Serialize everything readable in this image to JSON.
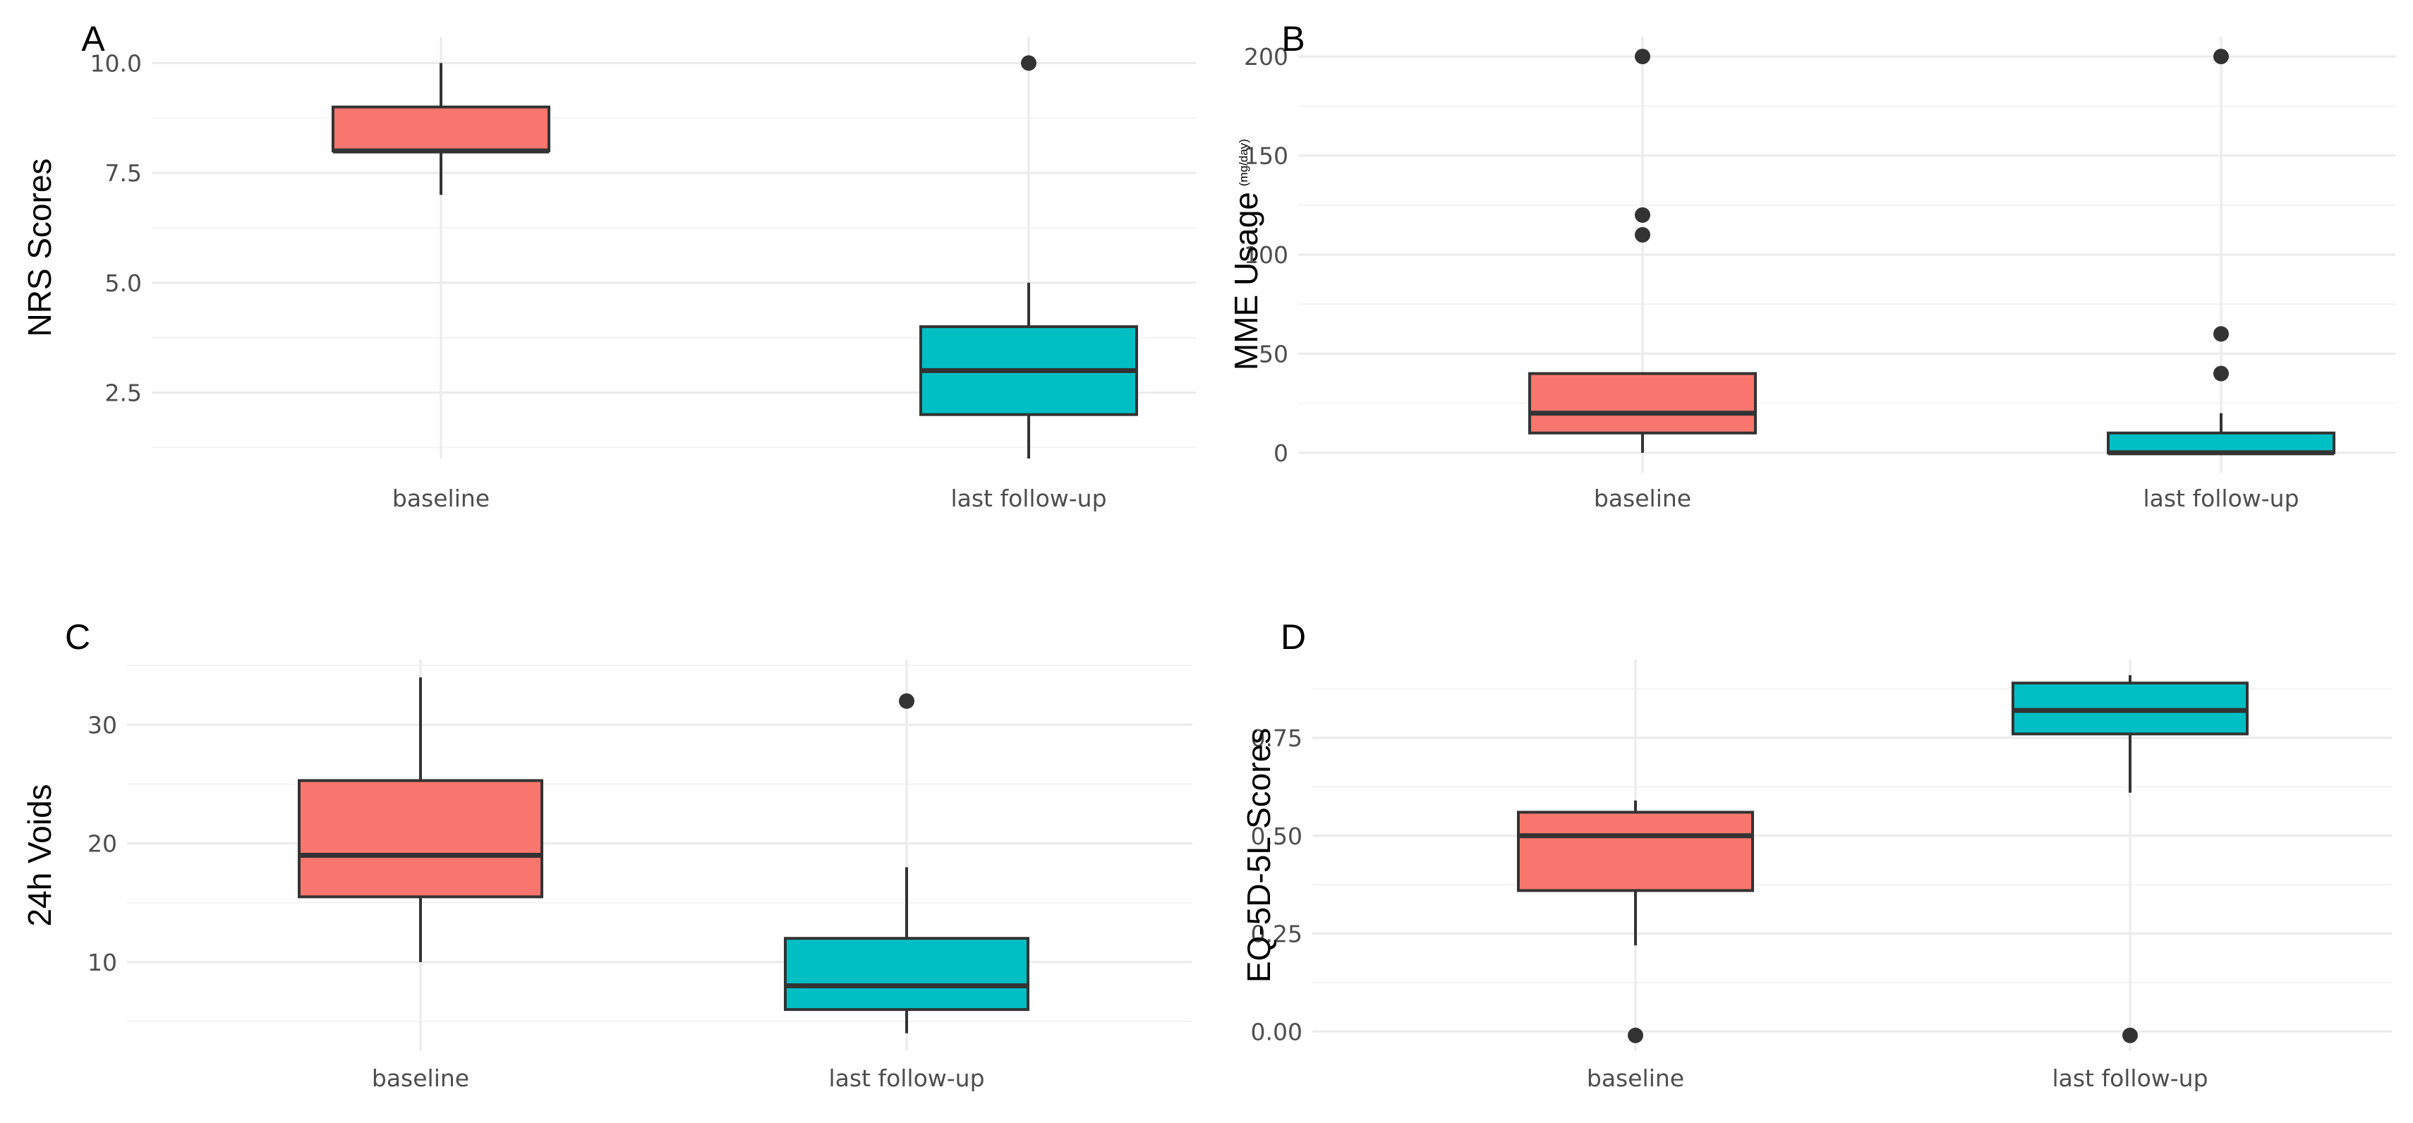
{
  "colors": {
    "baseline": "#F8766D",
    "follow_up": "#00BFC4"
  },
  "chart_data": [
    {
      "panel": "A",
      "type": "box",
      "title": "",
      "xlabel": "",
      "ylabel": "NRS Scores",
      "ylabel_unit": "",
      "categories": [
        "baseline",
        "last follow-up"
      ],
      "ylim": [
        1,
        10.6
      ],
      "yticks": [
        2.5,
        5.0,
        7.5,
        10.0
      ],
      "ytick_labels": [
        "2.5",
        "5.0",
        "7.5",
        "10.0"
      ],
      "boxes": [
        {
          "category": "baseline",
          "whisker_low": 7,
          "q1": 8,
          "median": 8,
          "q3": 9,
          "whisker_high": 10,
          "outliers": []
        },
        {
          "category": "last follow-up",
          "whisker_low": 1,
          "q1": 2,
          "median": 3,
          "q3": 4,
          "whisker_high": 5,
          "outliers": [
            10
          ]
        }
      ]
    },
    {
      "panel": "B",
      "type": "box",
      "title": "",
      "xlabel": "",
      "ylabel": "MME Usage",
      "ylabel_unit": "(mg/day)",
      "categories": [
        "baseline",
        "last follow-up"
      ],
      "ylim": [
        -10,
        210
      ],
      "yticks": [
        0,
        50,
        100,
        150,
        200
      ],
      "ytick_labels": [
        "0",
        "50",
        "100",
        "150",
        "200"
      ],
      "boxes": [
        {
          "category": "baseline",
          "whisker_low": 0,
          "q1": 10,
          "median": 20,
          "q3": 40,
          "whisker_high": 40,
          "outliers": [
            110,
            120,
            200
          ]
        },
        {
          "category": "last follow-up",
          "whisker_low": 0,
          "q1": 0,
          "median": 0,
          "q3": 10,
          "whisker_high": 20,
          "outliers": [
            40,
            60,
            200
          ]
        }
      ]
    },
    {
      "panel": "C",
      "type": "box",
      "title": "",
      "xlabel": "",
      "ylabel": "24h Voids",
      "ylabel_unit": "",
      "categories": [
        "baseline",
        "last follow-up"
      ],
      "ylim": [
        2.5,
        35.5
      ],
      "yticks": [
        10,
        20,
        30
      ],
      "ytick_labels": [
        "10",
        "20",
        "30"
      ],
      "boxes": [
        {
          "category": "baseline",
          "whisker_low": 10,
          "q1": 15.5,
          "median": 19,
          "q3": 25.3,
          "whisker_high": 34,
          "outliers": []
        },
        {
          "category": "last follow-up",
          "whisker_low": 4,
          "q1": 6,
          "median": 8,
          "q3": 12,
          "whisker_high": 18,
          "outliers": [
            32
          ]
        }
      ]
    },
    {
      "panel": "D",
      "type": "box",
      "title": "",
      "xlabel": "",
      "ylabel": "EQ-5D-5L Scores",
      "ylabel_unit": "",
      "categories": [
        "baseline",
        "last follow-up"
      ],
      "ylim": [
        -0.05,
        0.95
      ],
      "yticks": [
        0.0,
        0.25,
        0.5,
        0.75
      ],
      "ytick_labels": [
        "0.00",
        "0.25",
        "0.50",
        "0.75"
      ],
      "boxes": [
        {
          "category": "baseline",
          "whisker_low": 0.22,
          "q1": 0.36,
          "median": 0.5,
          "q3": 0.56,
          "whisker_high": 0.59,
          "outliers": [
            -0.01
          ]
        },
        {
          "category": "last follow-up",
          "whisker_low": 0.61,
          "q1": 0.76,
          "median": 0.82,
          "q3": 0.89,
          "whisker_high": 0.91,
          "outliers": [
            -0.01
          ]
        }
      ]
    }
  ]
}
